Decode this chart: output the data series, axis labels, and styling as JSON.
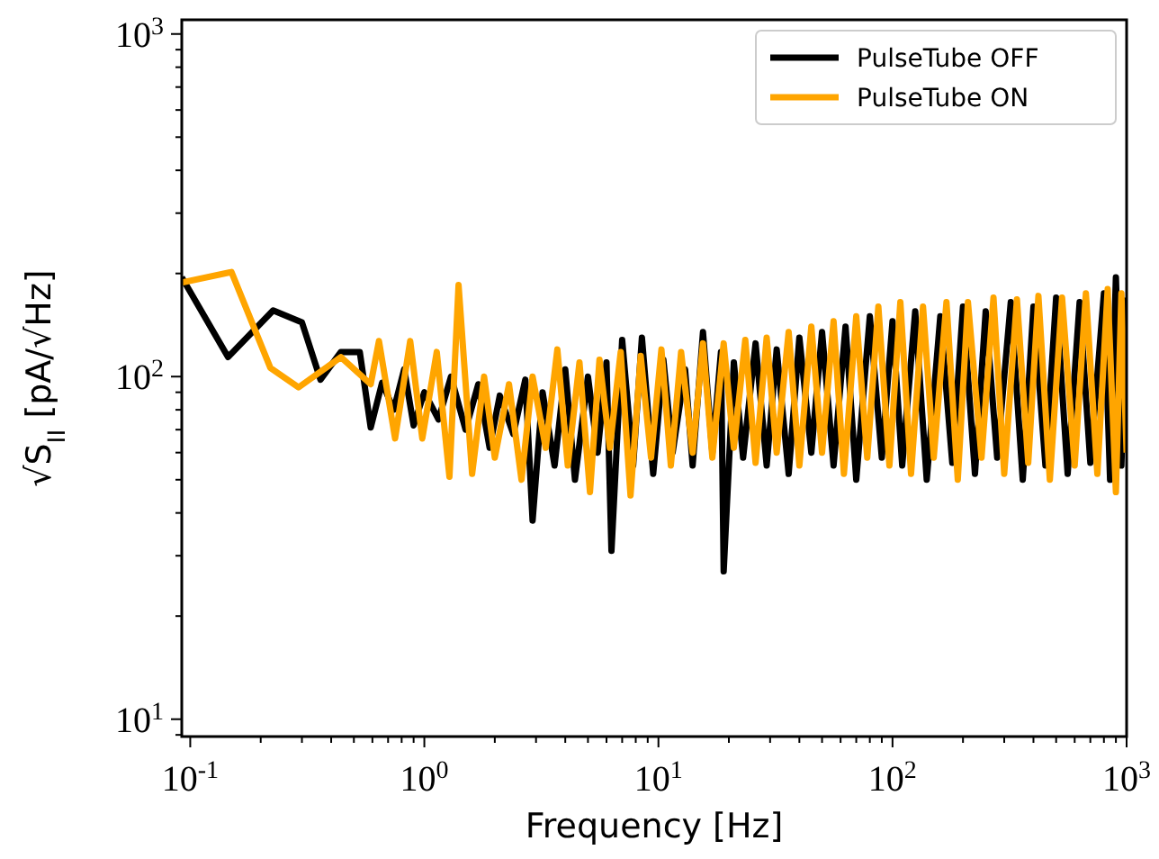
{
  "chart_data": {
    "type": "line",
    "xlabel": "Frequency [Hz]",
    "ylabel": "√S$_{II}$ [pA/√Hz]",
    "log": "xy",
    "legend": "top right",
    "grid": false,
    "line_style": "solid",
    "marker": "none",
    "xlim": [
      0.092,
      1000
    ],
    "ylim": [
      8.9,
      1100
    ],
    "xticks": [
      {
        "value": 0.1,
        "label": "10$^{-1}$"
      },
      {
        "value": 0.2,
        "label": null
      },
      {
        "value": 0.3,
        "label": null
      },
      {
        "value": 0.4,
        "label": null
      },
      {
        "value": 0.5,
        "label": null
      },
      {
        "value": 0.6,
        "label": null
      },
      {
        "value": 0.7,
        "label": null
      },
      {
        "value": 0.8,
        "label": null
      },
      {
        "value": 0.9,
        "label": null
      },
      {
        "value": 1,
        "label": "10$^{0}$"
      },
      {
        "value": 2,
        "label": null
      },
      {
        "value": 3,
        "label": null
      },
      {
        "value": 4,
        "label": null
      },
      {
        "value": 5,
        "label": null
      },
      {
        "value": 6,
        "label": null
      },
      {
        "value": 7,
        "label": null
      },
      {
        "value": 8,
        "label": null
      },
      {
        "value": 9,
        "label": null
      },
      {
        "value": 10,
        "label": "10$^{1}$"
      },
      {
        "value": 20,
        "label": null
      },
      {
        "value": 30,
        "label": null
      },
      {
        "value": 40,
        "label": null
      },
      {
        "value": 50,
        "label": null
      },
      {
        "value": 60,
        "label": null
      },
      {
        "value": 70,
        "label": null
      },
      {
        "value": 80,
        "label": null
      },
      {
        "value": 90,
        "label": null
      },
      {
        "value": 100,
        "label": "10$^{2}$"
      },
      {
        "value": 200,
        "label": null
      },
      {
        "value": 300,
        "label": null
      },
      {
        "value": 400,
        "label": null
      },
      {
        "value": 500,
        "label": null
      },
      {
        "value": 600,
        "label": null
      },
      {
        "value": 700,
        "label": null
      },
      {
        "value": 800,
        "label": null
      },
      {
        "value": 900,
        "label": null
      },
      {
        "value": 1000,
        "label": "10$^{3}$"
      }
    ],
    "yticks": [
      {
        "value": 9,
        "label": null
      },
      {
        "value": 10,
        "label": "10$^{1}$"
      },
      {
        "value": 20,
        "label": null
      },
      {
        "value": 30,
        "label": null
      },
      {
        "value": 40,
        "label": null
      },
      {
        "value": 50,
        "label": null
      },
      {
        "value": 60,
        "label": null
      },
      {
        "value": 70,
        "label": null
      },
      {
        "value": 80,
        "label": null
      },
      {
        "value": 90,
        "label": null
      },
      {
        "value": 100,
        "label": "10$^{2}$"
      },
      {
        "value": 200,
        "label": null
      },
      {
        "value": 300,
        "label": null
      },
      {
        "value": 400,
        "label": null
      },
      {
        "value": 500,
        "label": null
      },
      {
        "value": 600,
        "label": null
      },
      {
        "value": 700,
        "label": null
      },
      {
        "value": 800,
        "label": null
      },
      {
        "value": 900,
        "label": null
      },
      {
        "value": 1000,
        "label": "10$^{3}$"
      }
    ],
    "series": [
      {
        "name": "PulseTube OFF",
        "color": "#000000",
        "x": [
          0.092,
          0.145,
          0.226,
          0.3,
          0.36,
          0.44,
          0.53,
          0.59,
          0.66,
          0.74,
          0.82,
          0.9,
          1.0,
          1.15,
          1.3,
          1.5,
          1.7,
          1.9,
          2.1,
          2.4,
          2.7,
          2.9,
          3.2,
          3.6,
          4.0,
          4.4,
          5.0,
          5.5,
          6.0,
          6.3,
          7,
          7.8,
          8.5,
          9.5,
          10.5,
          11.5,
          13,
          14,
          15.5,
          17,
          18.5,
          19,
          21,
          23,
          26,
          29,
          32,
          36,
          40,
          45,
          50,
          56,
          63,
          70,
          80,
          90,
          100,
          110,
          125,
          140,
          160,
          180,
          200,
          225,
          250,
          280,
          320,
          360,
          400,
          450,
          500,
          560,
          630,
          700,
          800,
          850,
          900,
          950,
          1000
        ],
        "values": [
          195,
          114,
          156,
          144,
          98,
          118,
          118,
          71,
          96,
          80,
          105,
          72,
          90,
          75,
          100,
          70,
          95,
          62,
          88,
          68,
          98,
          38,
          90,
          55,
          105,
          50,
          100,
          60,
          110,
          31,
          128,
          55,
          130,
          52,
          112,
          60,
          105,
          55,
          135,
          60,
          118,
          27,
          110,
          58,
          125,
          55,
          120,
          52,
          130,
          60,
          135,
          55,
          140,
          50,
          150,
          58,
          145,
          55,
          155,
          50,
          150,
          56,
          160,
          52,
          155,
          58,
          165,
          50,
          160,
          55,
          170,
          52,
          165,
          56,
          175,
          50,
          195,
          55,
          170
        ]
      },
      {
        "name": "PulseTube ON",
        "color": "#ffa500",
        "x": [
          0.092,
          0.15,
          0.22,
          0.29,
          0.44,
          0.59,
          0.64,
          0.75,
          0.87,
          0.98,
          1.13,
          1.28,
          1.4,
          1.6,
          1.8,
          2.0,
          2.3,
          2.6,
          2.9,
          3.3,
          3.7,
          4.1,
          4.6,
          5.1,
          5.6,
          6.2,
          6.9,
          7.6,
          8.4,
          9.3,
          10.3,
          11.3,
          12.5,
          14,
          15.5,
          17,
          19,
          21,
          23.5,
          26,
          29,
          32,
          36,
          40,
          45,
          50,
          56,
          62,
          70,
          78,
          87,
          97,
          108,
          120,
          135,
          150,
          170,
          190,
          210,
          240,
          270,
          300,
          340,
          380,
          420,
          470,
          530,
          600,
          670,
          750,
          830,
          900,
          950,
          1000
        ],
        "values": [
          188,
          202,
          106,
          93,
          114,
          95,
          127,
          66,
          127,
          66,
          118,
          51,
          185,
          52,
          100,
          58,
          95,
          50,
          100,
          62,
          120,
          55,
          110,
          46,
          112,
          62,
          118,
          45,
          115,
          58,
          120,
          55,
          118,
          60,
          125,
          58,
          125,
          62,
          128,
          56,
          130,
          60,
          135,
          55,
          140,
          60,
          145,
          52,
          150,
          58,
          160,
          55,
          165,
          52,
          160,
          58,
          165,
          50,
          165,
          58,
          170,
          52,
          168,
          56,
          172,
          50,
          170,
          55,
          175,
          52,
          180,
          46,
          175,
          60
        ]
      }
    ]
  }
}
